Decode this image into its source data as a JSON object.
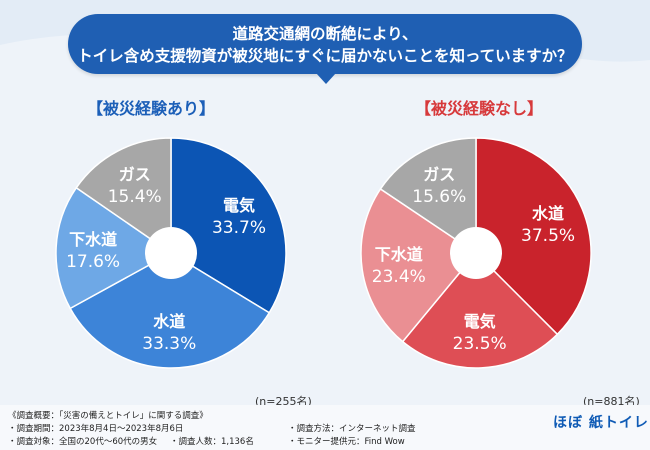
{
  "question": {
    "line1": "道路交通網の断絶により、",
    "line2": "トイレ含め支援物資が被災地にすぐに届かないことを知っていますか？"
  },
  "chart_data": [
    {
      "type": "pie",
      "title": "【被災経験あり】",
      "labels": [
        "電気",
        "水道",
        "下水道",
        "ガス"
      ],
      "values": [
        33.7,
        33.3,
        17.6,
        15.4
      ],
      "value_labels": [
        "33.7%",
        "33.3%",
        "17.6%",
        "15.4%"
      ],
      "colors": [
        "#0c55b4",
        "#3d84d8",
        "#6ea8e6",
        "#a7a7a7"
      ],
      "sample": "(n=255名)"
    },
    {
      "type": "pie",
      "title": "【被災経験なし】",
      "labels": [
        "水道",
        "電気",
        "下水道",
        "ガス"
      ],
      "values": [
        37.5,
        23.5,
        23.4,
        15.6
      ],
      "value_labels": [
        "37.5%",
        "23.5%",
        "23.4%",
        "15.6%"
      ],
      "colors": [
        "#c9232c",
        "#de4e55",
        "#ea8f93",
        "#a7a7a7"
      ],
      "sample": "(n=881名)"
    }
  ],
  "footer": {
    "heading": "《調査概要：「災害の備えとトイレ」に関する調査》",
    "period": "・調査期間：2023年8月4日〜2023年8月6日",
    "target": "・調査対象：全国の20代〜60代の男女",
    "count": "・調査人数：1,136名",
    "method": "・調査方法：インターネット調査",
    "provider": "・モニター提供元：Find Wow",
    "logo": "ほぼ 紙トイレ"
  }
}
